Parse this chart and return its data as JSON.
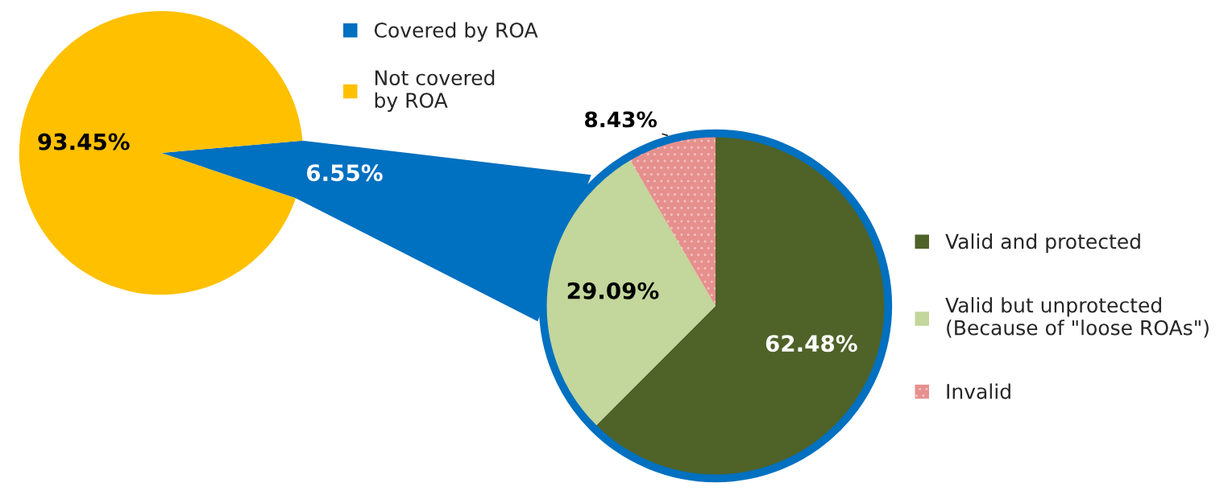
{
  "chart_data": [
    {
      "type": "pie",
      "categories": [
        "Covered by ROA",
        "Not covered\nby ROA"
      ],
      "values": [
        6.55,
        93.45
      ],
      "colors": [
        "#0070c0",
        "#ffc000"
      ],
      "value_labels": [
        "6.55%",
        "93.45%"
      ],
      "legend": "right"
    },
    {
      "type": "pie",
      "categories": [
        "Valid and protected",
        "Valid but unprotected\n(Because of \"loose ROAs\")",
        "Invalid"
      ],
      "values": [
        62.48,
        29.09,
        8.43
      ],
      "colors": [
        "#4f6228",
        "#c3d69b",
        "#e6908e"
      ],
      "value_labels": [
        "62.48%",
        "29.09%",
        "8.43%"
      ],
      "legend": "right"
    }
  ]
}
